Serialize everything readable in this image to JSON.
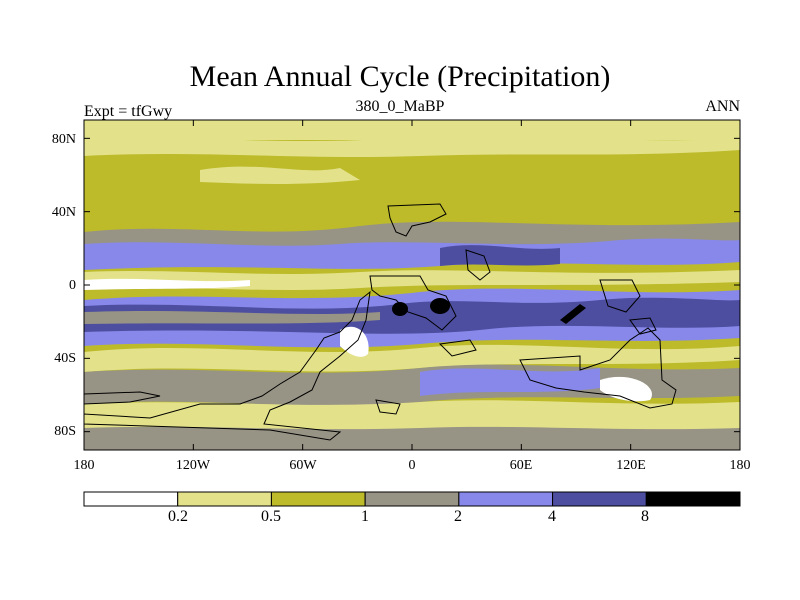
{
  "title": "Mean Annual Cycle (Precipitation)",
  "subtitle": "380_0_MaBP",
  "left_label": "Expt = tfGwy",
  "right_label": "ANN",
  "y_axis": {
    "labels": [
      "80N",
      "40N",
      "0",
      "40S",
      "80S"
    ],
    "values": [
      80,
      40,
      0,
      -40,
      -80
    ]
  },
  "x_axis": {
    "labels": [
      "180",
      "120W",
      "60W",
      "0",
      "60E",
      "120E",
      "180"
    ],
    "values": [
      -180,
      -120,
      -60,
      0,
      60,
      120,
      180
    ]
  },
  "colorbar": {
    "boundaries": [
      "0.2",
      "0.5",
      "1",
      "2",
      "4",
      "8"
    ],
    "colors": [
      "#ffffff",
      "#e3e28a",
      "#bdbb2a",
      "#979385",
      "#8788ea",
      "#4d4ea0",
      "#000000"
    ]
  },
  "colors": {
    "c0": "#ffffff",
    "c1": "#e3e28a",
    "c2": "#bdbb2a",
    "c3": "#979385",
    "c4": "#8788ea",
    "c5": "#4d4ea0",
    "c6": "#000000"
  }
}
